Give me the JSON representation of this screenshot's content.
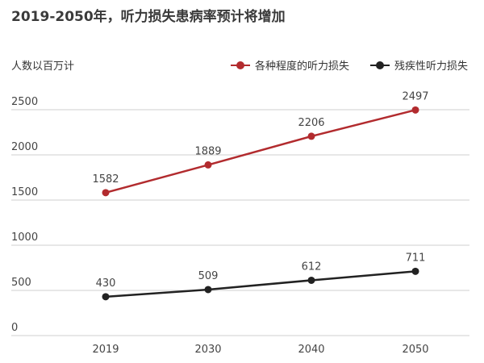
{
  "chart_data": {
    "type": "line",
    "title": "2019-2050年，听力损失患病率预计将增加",
    "ylabel": "人数以百万计",
    "xlabel": "",
    "categories": [
      "2019",
      "2030",
      "2040",
      "2050"
    ],
    "yticks": [
      0,
      500,
      1000,
      1500,
      2000,
      2500
    ],
    "ylim": [
      0,
      2500
    ],
    "grid": true,
    "legend_position": "top-right",
    "series": [
      {
        "name": "各种程度的听力损失",
        "color": "#b22b2e",
        "values": [
          1582,
          1889,
          2206,
          2497
        ]
      },
      {
        "name": "残疾性听力损失",
        "color": "#222222",
        "values": [
          430,
          509,
          612,
          711
        ]
      }
    ]
  }
}
